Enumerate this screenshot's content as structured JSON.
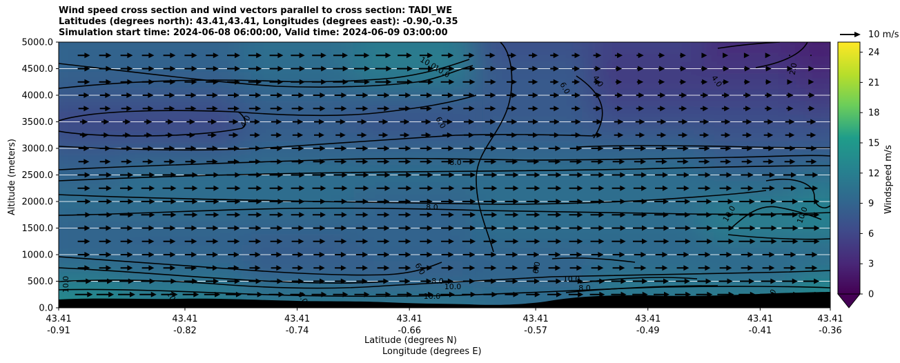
{
  "chart_data": {
    "type": "heatmap",
    "title": [
      "Wind speed cross section and wind vectors parallel to cross section: TADI_WE",
      "Latitudes (degrees north): 43.41,43.41, Longitudes (degrees east): -0.90,-0.35",
      "Simulation start time: 2024-06-08 06:00:00, Valid time: 2024-06-09 03:00:00"
    ],
    "xlabel_lat": "Latitude (degrees N)",
    "xlabel_lon": "Longitude (degrees E)",
    "ylabel": "Altitude (meters)",
    "ylim": [
      0,
      5000
    ],
    "yticks": [
      "0.0",
      "500.0",
      "1000.0",
      "1500.0",
      "2000.0",
      "2500.0",
      "3000.0",
      "3500.0",
      "4000.0",
      "4500.0",
      "5000.0"
    ],
    "xticks": [
      {
        "lat": "43.41",
        "lon": "-0.91"
      },
      {
        "lat": "43.41",
        "lon": "-0.82"
      },
      {
        "lat": "43.41",
        "lon": "-0.74"
      },
      {
        "lat": "43.41",
        "lon": "-0.66"
      },
      {
        "lat": "43.41",
        "lon": "-0.57"
      },
      {
        "lat": "43.41",
        "lon": "-0.49"
      },
      {
        "lat": "43.41",
        "lon": "-0.41"
      },
      {
        "lat": "43.41",
        "lon": "-0.36"
      }
    ],
    "colorbar": {
      "label": "Windspeed m/s",
      "range": [
        0,
        25
      ],
      "ticks": [
        "0",
        "3",
        "6",
        "9",
        "12",
        "15",
        "18",
        "21",
        "24"
      ],
      "colormap": "viridis",
      "extend": "min"
    },
    "vector_reference": "10 m/s",
    "contour_labels": [
      "10.0",
      "10.0",
      "6.0",
      "4.0",
      "2.0",
      "4.0",
      "4.0",
      "6.0",
      "8.0",
      "8.0",
      "10.0",
      "10.0",
      "6.0",
      "6.0",
      "8.0",
      "10.0",
      "10.0",
      "8.0",
      "10.0",
      "6.0",
      "10.0",
      "8.0",
      "10.0"
    ],
    "speed_field_grid": {
      "altitudes_m": [
        4900,
        4500,
        4000,
        3500,
        3000,
        2500,
        2000,
        1500,
        1000,
        500,
        250
      ],
      "longitudes": [
        -0.91,
        -0.82,
        -0.74,
        -0.66,
        -0.57,
        -0.49,
        -0.41,
        -0.36
      ],
      "values": [
        [
          8,
          8,
          9,
          10,
          6,
          5,
          3,
          2
        ],
        [
          8,
          8,
          9,
          11,
          7,
          4,
          4,
          3
        ],
        [
          7,
          7,
          8,
          8,
          7,
          5,
          5,
          4
        ],
        [
          5,
          5,
          7,
          6,
          7,
          6,
          6,
          6
        ],
        [
          7,
          7,
          8,
          8,
          8,
          8,
          7,
          7
        ],
        [
          8,
          9,
          9,
          9,
          9,
          9,
          8,
          9
        ],
        [
          9,
          9,
          9,
          8,
          9,
          9,
          10,
          11
        ],
        [
          8,
          8,
          8,
          8,
          9,
          9,
          11,
          11
        ],
        [
          8,
          8,
          7,
          8,
          8,
          8,
          8,
          8
        ],
        [
          10,
          9,
          8,
          7,
          8,
          10,
          9,
          11
        ],
        [
          12,
          11,
          10,
          10,
          9,
          10,
          11,
          12
        ]
      ]
    }
  }
}
